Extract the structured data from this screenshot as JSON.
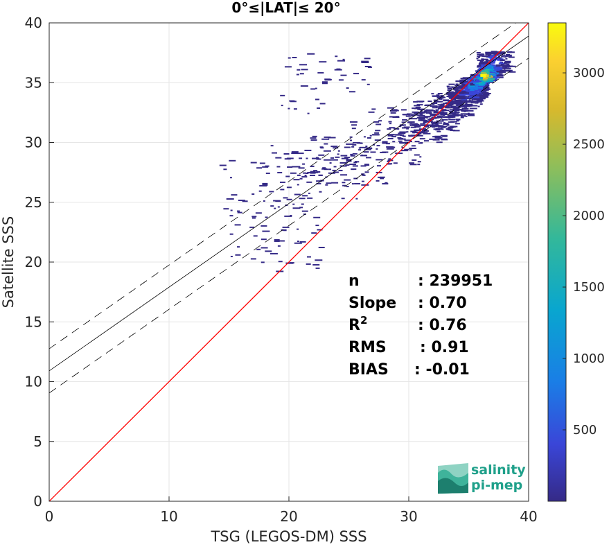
{
  "chart_data": {
    "type": "scatter",
    "title": "0°≤|LAT|≤ 20°",
    "xlabel": "TSG (LEGOS-DM) SSS",
    "ylabel": "Satellite SSS",
    "xlim": [
      0,
      40
    ],
    "ylim": [
      0,
      40
    ],
    "x_ticks": [
      "0",
      "10",
      "20",
      "30",
      "40"
    ],
    "y_ticks": [
      "0",
      "5",
      "10",
      "15",
      "20",
      "25",
      "30",
      "35",
      "40"
    ],
    "grid": true,
    "identity_line": {
      "x": [
        0,
        40
      ],
      "y": [
        0,
        40
      ],
      "color": "#ff0000"
    },
    "regression_line": {
      "slope": 0.7,
      "intercept": 10.9,
      "x_range": [
        0,
        40
      ],
      "color": "#000000"
    },
    "confidence_band_offset": 1.85,
    "density_points": [
      {
        "x": 36.2,
        "y": 35.6,
        "count": 3300
      },
      {
        "x": 35.8,
        "y": 35.3,
        "count": 2400
      },
      {
        "x": 36.5,
        "y": 36.0,
        "count": 1800
      },
      {
        "x": 35.3,
        "y": 34.8,
        "count": 1200
      },
      {
        "x": 35.0,
        "y": 34.5,
        "count": 800
      },
      {
        "x": 34.5,
        "y": 34.0,
        "count": 500
      },
      {
        "x": 37.0,
        "y": 36.8,
        "count": 600
      },
      {
        "x": 33.5,
        "y": 33.2,
        "count": 300
      },
      {
        "x": 32.0,
        "y": 32.3,
        "count": 150
      },
      {
        "x": 30.5,
        "y": 31.5,
        "count": 80
      },
      {
        "x": 28.0,
        "y": 30.0,
        "count": 20
      },
      {
        "x": 25.0,
        "y": 28.5,
        "count": 10
      },
      {
        "x": 22.0,
        "y": 27.5,
        "count": 5
      },
      {
        "x": 18.0,
        "y": 26.5,
        "count": 3
      },
      {
        "x": 19.0,
        "y": 21.8,
        "count": 2
      },
      {
        "x": 23.0,
        "y": 35.0,
        "count": 2
      }
    ],
    "colorbar": {
      "ticks": [
        "500",
        "1000",
        "1500",
        "2000",
        "2500",
        "3000"
      ],
      "range": [
        0,
        3350
      ],
      "colormap": "parula"
    },
    "stats": [
      {
        "label": "n",
        "value": ": 239951"
      },
      {
        "label": "Slope",
        "value": ": 0.70"
      },
      {
        "label": "R",
        "sup": "2",
        "value": ": 0.76"
      },
      {
        "label": "RMS",
        "value": ": 0.91"
      },
      {
        "label": "BIAS",
        "value": ": -0.01"
      }
    ],
    "logo": {
      "line1": "salinity",
      "line2": "pi-mep",
      "color": "#1fa08a"
    }
  }
}
